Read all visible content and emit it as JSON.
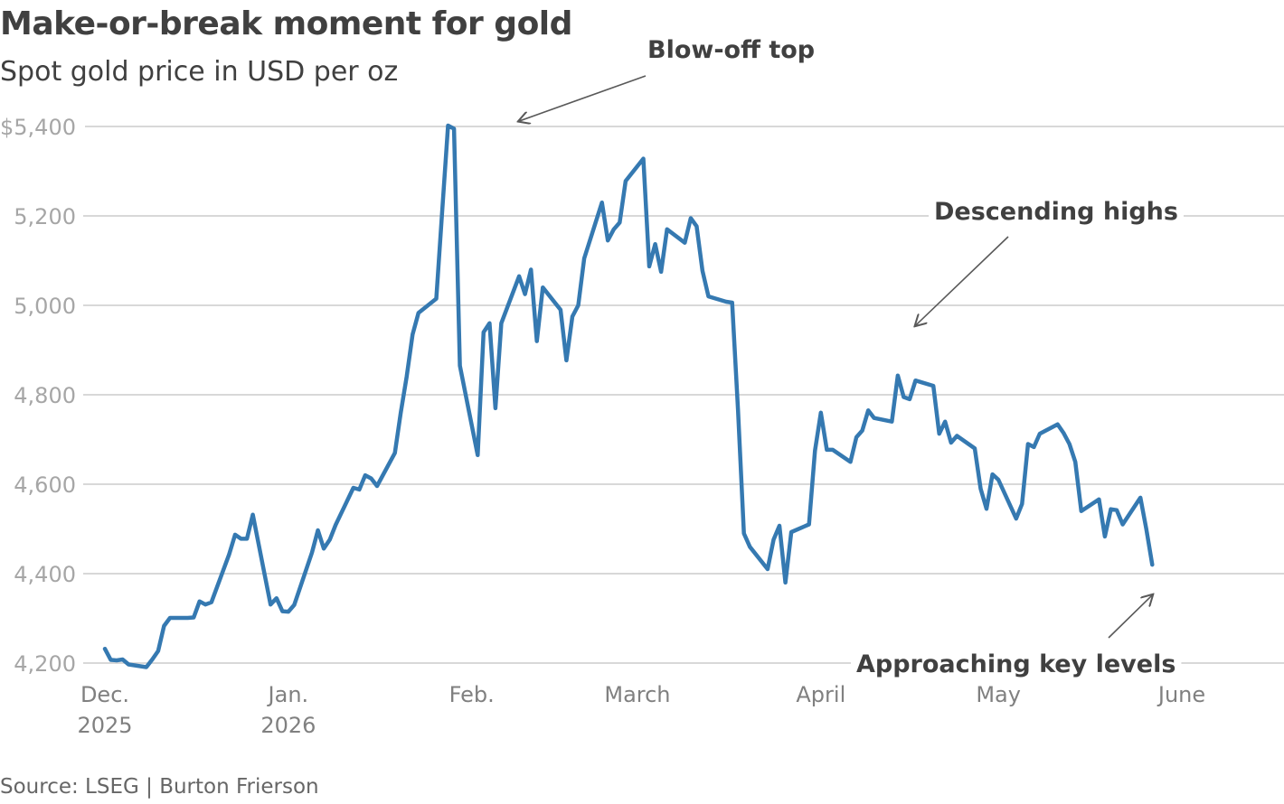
{
  "header": {
    "title": "Make-or-break moment for gold",
    "subtitle": "Spot gold price in USD per oz"
  },
  "footer": {
    "source": "Source: LSEG | Burton Frierson"
  },
  "colors": {
    "line": "#3579b1",
    "grid": "#cccccc",
    "text": "#404040",
    "tick_text": "#a6a6a6"
  },
  "chart_data": {
    "type": "line",
    "title": "Make-or-break moment for gold",
    "subtitle": "Spot gold price in USD per oz",
    "xlabel": "",
    "ylabel": "",
    "ylim": [
      4200,
      5400
    ],
    "xlim": [
      "2025-12-01",
      "2026-06-01"
    ],
    "grid": true,
    "yticks": [
      {
        "value": 5400,
        "label": "$5,400"
      },
      {
        "value": 5200,
        "label": "5,200"
      },
      {
        "value": 5000,
        "label": "5,000"
      },
      {
        "value": 4800,
        "label": "4,800"
      },
      {
        "value": 4600,
        "label": "4,600"
      },
      {
        "value": 4400,
        "label": "4,400"
      },
      {
        "value": 4200,
        "label": "4,200"
      }
    ],
    "xticks": [
      {
        "date": "2025-12-01",
        "line1": "Dec.",
        "line2": "2025"
      },
      {
        "date": "2026-01-01",
        "line1": "Jan.",
        "line2": "2026"
      },
      {
        "date": "2026-02-01",
        "line1": "Feb.",
        "line2": ""
      },
      {
        "date": "2026-03-01",
        "line1": "March",
        "line2": ""
      },
      {
        "date": "2026-04-01",
        "line1": "April",
        "line2": ""
      },
      {
        "date": "2026-05-01",
        "line1": "May",
        "line2": ""
      },
      {
        "date": "2026-06-01",
        "line1": "June",
        "line2": ""
      }
    ],
    "series": [
      {
        "points": [
          [
            "2025-12-01",
            4232
          ],
          [
            "2025-12-02",
            4207
          ],
          [
            "2025-12-03",
            4206
          ],
          [
            "2025-12-04",
            4208
          ],
          [
            "2025-12-05",
            4197
          ],
          [
            "2025-12-08",
            4191
          ],
          [
            "2025-12-09",
            4208
          ],
          [
            "2025-12-10",
            4227
          ],
          [
            "2025-12-11",
            4283
          ],
          [
            "2025-12-12",
            4301
          ],
          [
            "2025-12-15",
            4301
          ],
          [
            "2025-12-16",
            4302
          ],
          [
            "2025-12-17",
            4338
          ],
          [
            "2025-12-18",
            4331
          ],
          [
            "2025-12-19",
            4336
          ],
          [
            "2025-12-22",
            4443
          ],
          [
            "2025-12-23",
            4487
          ],
          [
            "2025-12-24",
            4478
          ],
          [
            "2025-12-25",
            4478
          ],
          [
            "2025-12-26",
            4532
          ],
          [
            "2025-12-29",
            4331
          ],
          [
            "2025-12-30",
            4345
          ],
          [
            "2025-12-31",
            4316
          ],
          [
            "2026-01-01",
            4315
          ],
          [
            "2026-01-02",
            4330
          ],
          [
            "2026-01-05",
            4447
          ],
          [
            "2026-01-06",
            4497
          ],
          [
            "2026-01-07",
            4456
          ],
          [
            "2026-01-08",
            4476
          ],
          [
            "2026-01-09",
            4509
          ],
          [
            "2026-01-12",
            4592
          ],
          [
            "2026-01-13",
            4588
          ],
          [
            "2026-01-14",
            4620
          ],
          [
            "2026-01-15",
            4613
          ],
          [
            "2026-01-16",
            4596
          ],
          [
            "2026-01-19",
            4670
          ],
          [
            "2026-01-20",
            4760
          ],
          [
            "2026-01-21",
            4840
          ],
          [
            "2026-01-22",
            4935
          ],
          [
            "2026-01-23",
            4983
          ],
          [
            "2026-01-26",
            5015
          ],
          [
            "2026-01-27",
            5210
          ],
          [
            "2026-01-28",
            5402
          ],
          [
            "2026-01-29",
            5395
          ],
          [
            "2026-01-30",
            4865
          ],
          [
            "2026-02-02",
            4665
          ],
          [
            "2026-02-03",
            4940
          ],
          [
            "2026-02-04",
            4960
          ],
          [
            "2026-02-05",
            4770
          ],
          [
            "2026-02-06",
            4960
          ],
          [
            "2026-02-09",
            5065
          ],
          [
            "2026-02-10",
            5025
          ],
          [
            "2026-02-11",
            5080
          ],
          [
            "2026-02-12",
            4920
          ],
          [
            "2026-02-13",
            5040
          ],
          [
            "2026-02-16",
            4990
          ],
          [
            "2026-02-17",
            4877
          ],
          [
            "2026-02-18",
            4975
          ],
          [
            "2026-02-19",
            5000
          ],
          [
            "2026-02-20",
            5105
          ],
          [
            "2026-02-23",
            5230
          ],
          [
            "2026-02-24",
            5145
          ],
          [
            "2026-02-25",
            5170
          ],
          [
            "2026-02-26",
            5185
          ],
          [
            "2026-02-27",
            5278
          ],
          [
            "2026-03-02",
            5328
          ],
          [
            "2026-03-03",
            5087
          ],
          [
            "2026-03-04",
            5137
          ],
          [
            "2026-03-05",
            5075
          ],
          [
            "2026-03-06",
            5170
          ],
          [
            "2026-03-09",
            5140
          ],
          [
            "2026-03-10",
            5195
          ],
          [
            "2026-03-11",
            5177
          ],
          [
            "2026-03-12",
            5077
          ],
          [
            "2026-03-13",
            5020
          ],
          [
            "2026-03-16",
            5008
          ],
          [
            "2026-03-17",
            5006
          ],
          [
            "2026-03-18",
            4765
          ],
          [
            "2026-03-19",
            4490
          ],
          [
            "2026-03-20",
            4460
          ],
          [
            "2026-03-23",
            4410
          ],
          [
            "2026-03-24",
            4476
          ],
          [
            "2026-03-25",
            4507
          ],
          [
            "2026-03-26",
            4380
          ],
          [
            "2026-03-27",
            4493
          ],
          [
            "2026-03-30",
            4510
          ],
          [
            "2026-03-31",
            4675
          ],
          [
            "2026-04-01",
            4760
          ],
          [
            "2026-04-02",
            4677
          ],
          [
            "2026-04-03",
            4677
          ],
          [
            "2026-04-06",
            4650
          ],
          [
            "2026-04-07",
            4705
          ],
          [
            "2026-04-08",
            4720
          ],
          [
            "2026-04-09",
            4765
          ],
          [
            "2026-04-10",
            4748
          ],
          [
            "2026-04-13",
            4740
          ],
          [
            "2026-04-14",
            4843
          ],
          [
            "2026-04-15",
            4795
          ],
          [
            "2026-04-16",
            4790
          ],
          [
            "2026-04-17",
            4832
          ],
          [
            "2026-04-20",
            4820
          ],
          [
            "2026-04-21",
            4713
          ],
          [
            "2026-04-22",
            4740
          ],
          [
            "2026-04-23",
            4693
          ],
          [
            "2026-04-24",
            4708
          ],
          [
            "2026-04-27",
            4680
          ],
          [
            "2026-04-28",
            4590
          ],
          [
            "2026-04-29",
            4545
          ],
          [
            "2026-04-30",
            4622
          ],
          [
            "2026-05-01",
            4610
          ],
          [
            "2026-05-04",
            4523
          ],
          [
            "2026-05-05",
            4556
          ],
          [
            "2026-05-06",
            4690
          ],
          [
            "2026-05-07",
            4683
          ],
          [
            "2026-05-08",
            4713
          ],
          [
            "2026-05-11",
            4734
          ],
          [
            "2026-05-12",
            4715
          ],
          [
            "2026-05-13",
            4690
          ],
          [
            "2026-05-14",
            4650
          ],
          [
            "2026-05-15",
            4540
          ],
          [
            "2026-05-18",
            4566
          ],
          [
            "2026-05-19",
            4483
          ],
          [
            "2026-05-20",
            4544
          ],
          [
            "2026-05-21",
            4542
          ],
          [
            "2026-05-22",
            4510
          ],
          [
            "2026-05-25",
            4570
          ],
          [
            "2026-05-26",
            4500
          ],
          [
            "2026-05-27",
            4420
          ]
        ]
      }
    ],
    "annotations": [
      {
        "text": "Blow-off top",
        "target": [
          "2026-02-09",
          5412
        ]
      },
      {
        "text": "Descending highs",
        "target": [
          "2026-04-17",
          4955
        ]
      },
      {
        "text": "Approaching key levels",
        "target": [
          "2026-05-27",
          4352
        ]
      }
    ]
  }
}
